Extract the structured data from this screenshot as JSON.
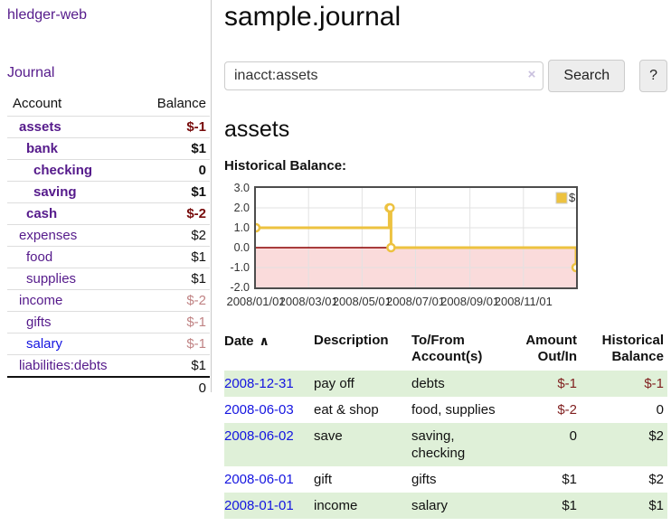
{
  "brand": "hledger-web",
  "nav": {
    "journal": "Journal"
  },
  "sidebar": {
    "columns": {
      "account": "Account",
      "balance": "Balance"
    },
    "accounts": [
      {
        "name": "assets",
        "indent": 1,
        "balance": "$-1",
        "emph": true
      },
      {
        "name": "bank",
        "indent": 2,
        "balance": "$1",
        "emph": true
      },
      {
        "name": "checking",
        "indent": 3,
        "balance": "0",
        "emph": true
      },
      {
        "name": "saving",
        "indent": 3,
        "balance": "$1",
        "emph": true
      },
      {
        "name": "cash",
        "indent": 2,
        "balance": "$-2",
        "emph": true
      },
      {
        "name": "expenses",
        "indent": 1,
        "balance": "$2",
        "emph": false
      },
      {
        "name": "food",
        "indent": 2,
        "balance": "$1",
        "emph": false
      },
      {
        "name": "supplies",
        "indent": 2,
        "balance": "$1",
        "emph": false
      },
      {
        "name": "income",
        "indent": 1,
        "balance": "$-2",
        "emph": false
      },
      {
        "name": "gifts",
        "indent": 2,
        "balance": "$-1",
        "emph": false
      },
      {
        "name": "salary",
        "indent": 2,
        "balance": "$-1",
        "emph": false,
        "link_color": "blue"
      },
      {
        "name": "liabilities:debts",
        "indent": 1,
        "balance": "$1",
        "emph": false
      }
    ],
    "total": "0"
  },
  "header": {
    "title": "sample.journal"
  },
  "search": {
    "value": "inacct:assets",
    "clear_icon": "×",
    "search_label": "Search",
    "help_label": "?"
  },
  "account_page": {
    "heading": "assets",
    "chart_label": "Historical Balance:"
  },
  "chart_data": {
    "type": "line",
    "style": "step-after",
    "title": "Historical Balance",
    "legend": [
      {
        "label": "$",
        "color": "#edc240"
      }
    ],
    "x_start": "2008/01/01",
    "x_end": "2008/12/31",
    "x_ticks": [
      "2008/01/01",
      "2008/03/01",
      "2008/05/01",
      "2008/07/01",
      "2008/09/01",
      "2008/11/01"
    ],
    "y_ticks": [
      3.0,
      2.0,
      1.0,
      0.0,
      -1.0,
      -2.0
    ],
    "ylim": [
      -2,
      3
    ],
    "grid": true,
    "legend_position": "top-right",
    "points": [
      {
        "date": "2008/01/01",
        "value": 1
      },
      {
        "date": "2008/06/01",
        "value": 2
      },
      {
        "date": "2008/06/02",
        "value": 2
      },
      {
        "date": "2008/06/03",
        "value": 0
      },
      {
        "date": "2008/12/31",
        "value": -1
      }
    ],
    "line_color": "#edc240",
    "negative_region_color": "#fadbdb",
    "zero_line_color": "#8b0000"
  },
  "register": {
    "headers": {
      "date": "Date",
      "sort_icon": "∧",
      "description": "Description",
      "accounts": "To/From Account(s)",
      "amount": "Amount Out/In",
      "balance": "Historical Balance"
    },
    "rows": [
      {
        "date": "2008-12-31",
        "description": "pay off",
        "accounts": "debts",
        "amount": "$-1",
        "balance": "$-1"
      },
      {
        "date": "2008-06-03",
        "description": "eat & shop",
        "accounts": "food, supplies",
        "amount": "$-2",
        "balance": "0"
      },
      {
        "date": "2008-06-02",
        "description": "save",
        "accounts": "saving, checking",
        "amount": "0",
        "balance": "$2"
      },
      {
        "date": "2008-06-01",
        "description": "gift",
        "accounts": "gifts",
        "amount": "$1",
        "balance": "$2"
      },
      {
        "date": "2008-01-01",
        "description": "income",
        "accounts": "salary",
        "amount": "$1",
        "balance": "$1"
      }
    ]
  }
}
